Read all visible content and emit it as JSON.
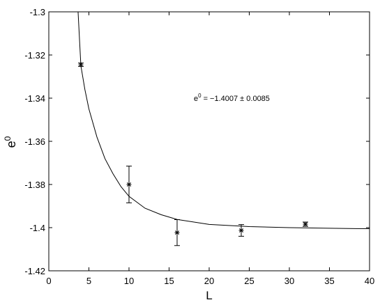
{
  "chart_data": {
    "type": "scatter",
    "xlabel": "L",
    "ylabel": {
      "base": "e",
      "sup": "0"
    },
    "annotation": {
      "base": "e",
      "sup": "0",
      "rest": "= −1.4007 ± 0.0085"
    },
    "xlim": [
      0,
      40
    ],
    "xticks": [
      0,
      5,
      10,
      15,
      20,
      25,
      30,
      35,
      40
    ],
    "ylim": [
      -1.42,
      -1.3
    ],
    "yticks": [
      -1.42,
      -1.4,
      -1.38,
      -1.36,
      -1.34,
      -1.32,
      -1.3
    ],
    "color": "#000000",
    "points": {
      "x": [
        4,
        10,
        16,
        24,
        32
      ],
      "values": [
        -1.3245,
        -1.38,
        -1.4023,
        -1.4013,
        -1.3984
      ],
      "errors": [
        0.0008,
        0.0085,
        0.006,
        0.0027,
        0.001
      ]
    },
    "fit": {
      "x": [
        3.65,
        4,
        4.5,
        5,
        6,
        7,
        8,
        9,
        10,
        12,
        14,
        16,
        20,
        25,
        30,
        35,
        40
      ],
      "values": [
        -1.3,
        -1.325,
        -1.336,
        -1.345,
        -1.358,
        -1.368,
        -1.375,
        -1.381,
        -1.3855,
        -1.391,
        -1.394,
        -1.3962,
        -1.3985,
        -1.3995,
        -1.4,
        -1.4003,
        -1.4005
      ]
    }
  }
}
